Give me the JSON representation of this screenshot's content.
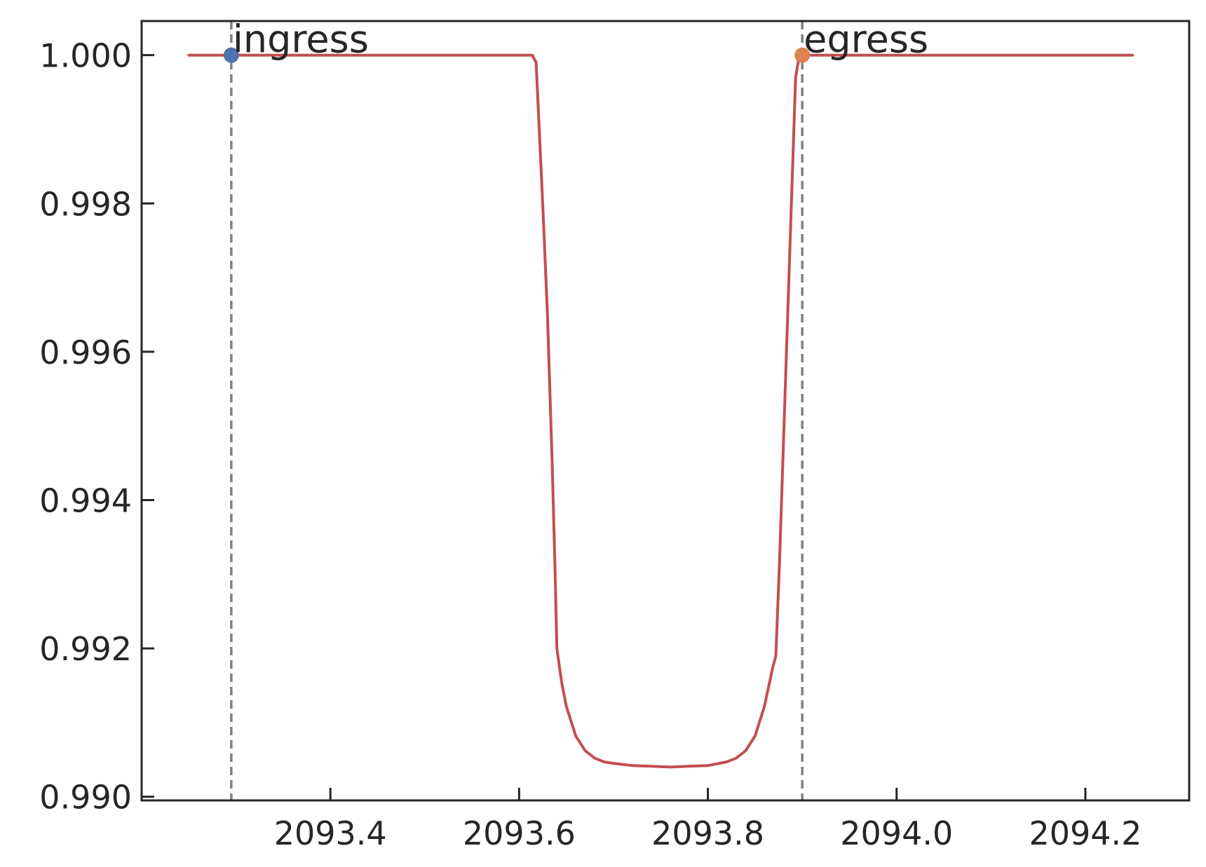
{
  "chart_data": {
    "type": "line",
    "title": "",
    "xlabel": "",
    "ylabel": "",
    "xlim": [
      2093.2,
      2094.31
    ],
    "ylim": [
      0.98995,
      1.00046
    ],
    "x_ticks": [
      2093.4,
      2093.6,
      2093.8,
      2094.0,
      2094.2
    ],
    "x_tick_labels": [
      "2093.4",
      "2093.6",
      "2093.8",
      "2094.0",
      "2094.2"
    ],
    "y_ticks": [
      0.99,
      0.992,
      0.994,
      0.996,
      0.998,
      1.0
    ],
    "y_tick_labels": [
      "0.990",
      "0.992",
      "0.994",
      "0.996",
      "0.998",
      "1.000"
    ],
    "grid": false,
    "series": [
      {
        "color": "#c44e52",
        "x": [
          2093.25,
          2093.3,
          2093.4,
          2093.5,
          2093.6,
          2093.614,
          2093.616,
          2093.618,
          2093.625,
          2093.63,
          2093.635,
          2093.638,
          2093.64,
          2093.645,
          2093.65,
          2093.66,
          2093.67,
          2093.68,
          2093.69,
          2093.7,
          2093.72,
          2093.74,
          2093.76,
          2093.78,
          2093.8,
          2093.82,
          2093.83,
          2093.84,
          2093.85,
          2093.86,
          2093.868,
          2093.872,
          2093.876,
          2093.882,
          2093.888,
          2093.893,
          2093.895,
          2093.897,
          2093.9,
          2093.95,
          2094.0,
          2094.1,
          2094.2,
          2094.25
        ],
        "y": [
          1.0,
          1.0,
          1.0,
          1.0,
          1.0,
          1.0,
          0.99995,
          0.9999,
          0.998,
          0.9965,
          0.9945,
          0.9931,
          0.992,
          0.99155,
          0.99122,
          0.99082,
          0.99062,
          0.99052,
          0.99047,
          0.99045,
          0.99042,
          0.99041,
          0.9904,
          0.99041,
          0.99042,
          0.99047,
          0.99052,
          0.99062,
          0.99082,
          0.99122,
          0.9917,
          0.9919,
          0.9932,
          0.9955,
          0.9978,
          0.9997,
          0.99985,
          1.0,
          1.0,
          1.0,
          1.0,
          1.0,
          1.0,
          1.0
        ]
      }
    ],
    "vlines": [
      {
        "x": 2093.295,
        "color": "#808080",
        "style": "dashed"
      },
      {
        "x": 2093.9,
        "color": "#808080",
        "style": "dashed"
      }
    ],
    "markers": [
      {
        "x": 2093.295,
        "y": 1.0,
        "color": "#4c72b0"
      },
      {
        "x": 2093.9,
        "y": 1.0,
        "color": "#dd8452"
      }
    ],
    "annotations": [
      {
        "text": "ingress",
        "x": 2093.295,
        "y": 1.0
      },
      {
        "text": "egress",
        "x": 2093.9,
        "y": 1.0
      }
    ]
  }
}
